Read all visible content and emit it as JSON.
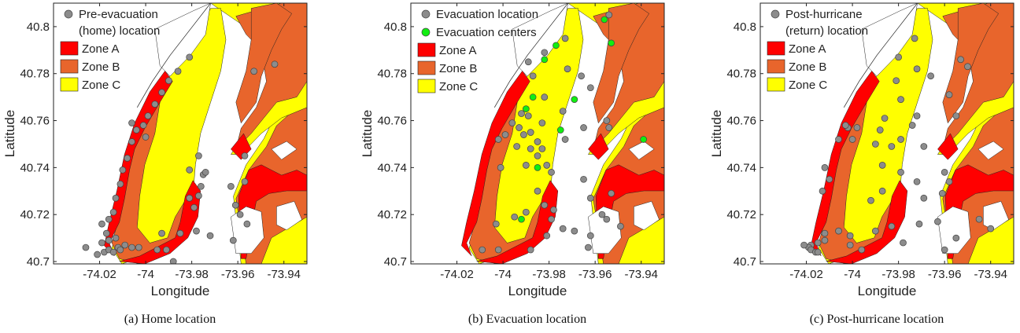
{
  "colors": {
    "zone_a": "#ff0000",
    "zone_b": "#e8652c",
    "zone_c": "#ffff00",
    "gray_point": "#8c8c8c",
    "green_point": "#11ee11"
  },
  "chart_data": [
    {
      "type": "scatter",
      "caption": "(a)  Home location",
      "xlabel": "Longitude",
      "ylabel": "Latitude",
      "xlim": [
        -74.04,
        -73.93
      ],
      "ylim": [
        40.699,
        40.81
      ],
      "xticks": [
        "-74.02",
        "-74",
        "-73.98",
        "-73.96",
        "-73.94"
      ],
      "yticks": [
        "40.7",
        "40.72",
        "40.74",
        "40.76",
        "40.78",
        "40.8"
      ],
      "legend_position": "top-left",
      "legend": [
        {
          "label": "Pre-evacuation",
          "label2": "(home) location",
          "kind": "marker",
          "color": "#8c8c8c"
        },
        {
          "label": "Zone A",
          "kind": "patch",
          "color": "#ff0000"
        },
        {
          "label": "Zone B",
          "kind": "patch",
          "color": "#e8652c"
        },
        {
          "label": "Zone C",
          "kind": "patch",
          "color": "#ffff00"
        }
      ],
      "series": [
        {
          "name": "Pre-evacuation (home) location",
          "color": "#8c8c8c",
          "points": [
            [
              -74.026,
              40.706
            ],
            [
              -74.021,
              40.703
            ],
            [
              -74.018,
              40.704
            ],
            [
              -74.016,
              40.705
            ],
            [
              -74.014,
              40.704
            ],
            [
              -74.012,
              40.706
            ],
            [
              -74.011,
              40.705
            ],
            [
              -74.009,
              40.707
            ],
            [
              -74.019,
              40.708
            ],
            [
              -74.016,
              40.709
            ],
            [
              -74.013,
              40.71
            ],
            [
              -74.017,
              40.712
            ],
            [
              -74.019,
              40.716
            ],
            [
              -74.016,
              40.718
            ],
            [
              -74.014,
              40.721
            ],
            [
              -74.013,
              40.727
            ],
            [
              -74.011,
              40.733
            ],
            [
              -74.01,
              40.739
            ],
            [
              -74.008,
              40.744
            ],
            [
              -74.006,
              40.751
            ],
            [
              -74.004,
              40.756
            ],
            [
              -74.001,
              40.758
            ],
            [
              -73.999,
              40.762
            ],
            [
              -73.996,
              40.767
            ],
            [
              -73.993,
              40.772
            ],
            [
              -73.99,
              40.777
            ],
            [
              -73.986,
              40.781
            ],
            [
              -73.981,
              40.787
            ],
            [
              -74.006,
              40.759
            ],
            [
              -74.0,
              40.753
            ],
            [
              -74.006,
              40.706
            ],
            [
              -74.003,
              40.706
            ],
            [
              -73.995,
              40.705
            ],
            [
              -73.991,
              40.705
            ],
            [
              -73.988,
              40.7
            ],
            [
              -73.993,
              40.712
            ],
            [
              -73.985,
              40.712
            ],
            [
              -73.978,
              40.713
            ],
            [
              -73.972,
              40.711
            ],
            [
              -73.979,
              40.723
            ],
            [
              -73.977,
              40.728
            ],
            [
              -73.976,
              40.732
            ],
            [
              -73.975,
              40.737
            ],
            [
              -73.977,
              40.745
            ],
            [
              -73.974,
              40.738
            ],
            [
              -73.981,
              40.727
            ],
            [
              -73.981,
              40.739
            ],
            [
              -73.961,
              40.724
            ],
            [
              -73.959,
              40.72
            ],
            [
              -73.963,
              40.732
            ],
            [
              -73.962,
              40.709
            ],
            [
              -73.957,
              40.745
            ],
            [
              -73.957,
              40.734
            ],
            [
              -73.956,
              40.716
            ],
            [
              -73.953,
              40.781
            ],
            [
              -73.944,
              40.784
            ]
          ]
        }
      ]
    },
    {
      "type": "scatter",
      "caption": "(b)  Evacuation location",
      "xlabel": "Longitude",
      "ylabel": "Latitude",
      "xlim": [
        -74.04,
        -73.93
      ],
      "ylim": [
        40.699,
        40.81
      ],
      "xticks": [
        "-74.02",
        "-74",
        "-73.98",
        "-73.96",
        "-73.94"
      ],
      "yticks": [
        "40.7",
        "40.72",
        "40.74",
        "40.76",
        "40.78",
        "40.8"
      ],
      "legend_position": "top-left",
      "legend": [
        {
          "label": "Evacuation location",
          "kind": "marker",
          "color": "#8c8c8c"
        },
        {
          "label": "Evacuation centers",
          "kind": "marker",
          "color": "#11ee11"
        },
        {
          "label": "Zone A",
          "kind": "patch",
          "color": "#ff0000"
        },
        {
          "label": "Zone B",
          "kind": "patch",
          "color": "#e8652c"
        },
        {
          "label": "Zone C",
          "kind": "patch",
          "color": "#ffff00"
        }
      ],
      "series": [
        {
          "name": "Evacuation location",
          "color": "#8c8c8c",
          "points": [
            [
              -73.954,
              40.805
            ],
            [
              -73.973,
              40.795
            ],
            [
              -73.982,
              40.789
            ],
            [
              -73.989,
              40.785
            ],
            [
              -73.972,
              40.782
            ],
            [
              -73.966,
              40.779
            ],
            [
              -73.962,
              40.774
            ],
            [
              -73.987,
              40.779
            ],
            [
              -73.982,
              40.77
            ],
            [
              -73.974,
              40.764
            ],
            [
              -73.983,
              40.759
            ],
            [
              -73.955,
              40.76
            ],
            [
              -73.954,
              40.757
            ],
            [
              -73.965,
              40.757
            ],
            [
              -73.973,
              40.752
            ],
            [
              -73.988,
              40.755
            ],
            [
              -73.985,
              40.751
            ],
            [
              -73.993,
              40.757
            ],
            [
              -73.996,
              40.759
            ],
            [
              -73.992,
              40.763
            ],
            [
              -73.989,
              40.762
            ],
            [
              -73.991,
              40.754
            ],
            [
              -73.994,
              40.749
            ],
            [
              -73.999,
              40.754
            ],
            [
              -74.002,
              40.752
            ],
            [
              -73.983,
              40.748
            ],
            [
              -73.988,
              40.748
            ],
            [
              -73.985,
              40.745
            ],
            [
              -73.981,
              40.741
            ],
            [
              -73.99,
              40.741
            ],
            [
              -73.979,
              40.738
            ],
            [
              -74.001,
              40.74
            ],
            [
              -73.965,
              40.735
            ],
            [
              -73.962,
              40.727
            ],
            [
              -73.957,
              40.72
            ],
            [
              -73.953,
              40.729
            ],
            [
              -73.985,
              40.73
            ],
            [
              -73.982,
              40.724
            ],
            [
              -73.99,
              40.721
            ],
            [
              -73.978,
              40.722
            ],
            [
              -73.979,
              40.718
            ],
            [
              -73.974,
              40.714
            ],
            [
              -73.981,
              40.711
            ],
            [
              -73.969,
              40.713
            ],
            [
              -73.962,
              40.711
            ],
            [
              -73.955,
              40.718
            ],
            [
              -73.995,
              40.719
            ],
            [
              -74.003,
              40.716
            ],
            [
              -74.002,
              40.705
            ],
            [
              -74.009,
              40.705
            ],
            [
              -73.988,
              40.705
            ],
            [
              -73.949,
              40.715
            ],
            [
              -73.963,
              40.706
            ]
          ]
        },
        {
          "name": "Evacuation centers",
          "color": "#11ee11",
          "points": [
            [
              -73.956,
              40.803
            ],
            [
              -73.982,
              40.786
            ],
            [
              -73.977,
              40.792
            ],
            [
              -73.953,
              40.793
            ],
            [
              -73.969,
              40.769
            ],
            [
              -73.987,
              40.77
            ],
            [
              -73.99,
              40.765
            ],
            [
              -73.975,
              40.756
            ],
            [
              -73.985,
              40.74
            ],
            [
              -73.992,
              40.718
            ],
            [
              -73.939,
              40.752
            ]
          ]
        }
      ]
    },
    {
      "type": "scatter",
      "caption": "(c)  Post-hurricane location",
      "xlabel": "Longitude",
      "ylabel": "Latitude",
      "xlim": [
        -74.04,
        -73.93
      ],
      "ylim": [
        40.699,
        40.81
      ],
      "xticks": [
        "-74.02",
        "-74",
        "-73.98",
        "-73.96",
        "-73.94"
      ],
      "yticks": [
        "40.7",
        "40.72",
        "40.74",
        "40.76",
        "40.78",
        "40.8"
      ],
      "legend_position": "top-left",
      "legend": [
        {
          "label": "Post-hurricane",
          "label2": "(return) location",
          "kind": "marker",
          "color": "#8c8c8c"
        },
        {
          "label": "Zone A",
          "kind": "patch",
          "color": "#ff0000"
        },
        {
          "label": "Zone B",
          "kind": "patch",
          "color": "#e8652c"
        },
        {
          "label": "Zone C",
          "kind": "patch",
          "color": "#ffff00"
        }
      ],
      "series": [
        {
          "name": "Post-hurricane (return) location",
          "color": "#8c8c8c",
          "points": [
            [
              -73.973,
              40.795
            ],
            [
              -73.98,
              40.787
            ],
            [
              -73.953,
              40.786
            ],
            [
              -73.95,
              40.783
            ],
            [
              -73.972,
              40.782
            ],
            [
              -73.966,
              40.779
            ],
            [
              -73.958,
              40.771
            ],
            [
              -73.981,
              40.777
            ],
            [
              -73.979,
              40.769
            ],
            [
              -73.972,
              40.762
            ],
            [
              -73.974,
              40.758
            ],
            [
              -73.955,
              40.762
            ],
            [
              -73.986,
              40.761
            ],
            [
              -73.988,
              40.756
            ],
            [
              -73.979,
              40.752
            ],
            [
              -73.983,
              40.749
            ],
            [
              -73.969,
              40.749
            ],
            [
              -73.99,
              40.75
            ],
            [
              -73.998,
              40.757
            ],
            [
              -74.0,
              40.752
            ],
            [
              -74.002,
              40.757
            ],
            [
              -74.006,
              40.752
            ],
            [
              -74.003,
              40.758
            ],
            [
              -74.012,
              40.74
            ],
            [
              -74.01,
              40.735
            ],
            [
              -74.013,
              40.73
            ],
            [
              -73.987,
              40.741
            ],
            [
              -73.979,
              40.738
            ],
            [
              -73.972,
              40.734
            ],
            [
              -73.96,
              40.738
            ],
            [
              -73.958,
              40.734
            ],
            [
              -73.969,
              40.727
            ],
            [
              -73.961,
              40.729
            ],
            [
              -73.987,
              40.73
            ],
            [
              -73.992,
              40.726
            ],
            [
              -73.983,
              40.715
            ],
            [
              -73.971,
              40.716
            ],
            [
              -73.963,
              40.717
            ],
            [
              -73.955,
              40.71
            ],
            [
              -73.96,
              40.705
            ],
            [
              -73.99,
              40.713
            ],
            [
              -74.001,
              40.711
            ],
            [
              -74.012,
              40.709
            ],
            [
              -74.015,
              40.708
            ],
            [
              -74.018,
              40.707
            ],
            [
              -74.019,
              40.706
            ],
            [
              -74.021,
              40.707
            ],
            [
              -74.018,
              40.705
            ],
            [
              -74.016,
              40.704
            ],
            [
              -74.015,
              40.704
            ],
            [
              -74.012,
              40.712
            ],
            [
              -74.006,
              40.713
            ],
            [
              -74.001,
              40.707
            ],
            [
              -73.996,
              40.705
            ],
            [
              -73.978,
              40.708
            ],
            [
              -73.945,
              40.718
            ],
            [
              -73.94,
              40.714
            ]
          ]
        }
      ]
    }
  ]
}
